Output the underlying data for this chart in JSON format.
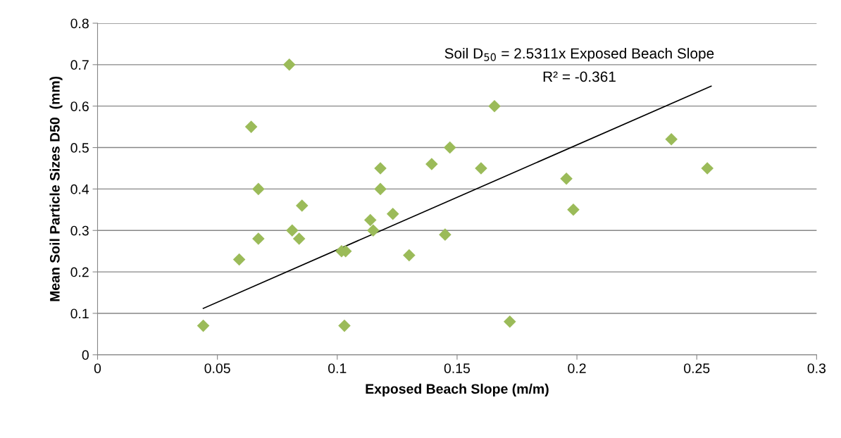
{
  "chart_data": {
    "type": "scatter",
    "xlabel": "Exposed Beach Slope (m/m)",
    "ylabel": "Mean Soil Particle Sizes D50  (mm)",
    "annotations": [
      "Soil D$_{50}$ = 2.5311x Exposed Beach Slope",
      "R² = -0.361"
    ],
    "xlim": [
      0,
      0.3
    ],
    "xticks": [
      0,
      0.05,
      0.1,
      0.15,
      0.2,
      0.25,
      0.3
    ],
    "ylim": [
      0,
      0.8
    ],
    "yticks": [
      0,
      0.1,
      0.2,
      0.3,
      0.4,
      0.5,
      0.6,
      0.7,
      0.8
    ],
    "grid": "y",
    "legend": false,
    "series": [
      {
        "color": "#9bbb59",
        "marker": "diamond",
        "x": [
          0.0441,
          0.0591,
          0.0641,
          0.0671,
          0.0671,
          0.08,
          0.0812,
          0.0841,
          0.0853,
          0.1018,
          0.1035,
          0.103,
          0.1138,
          0.115,
          0.118,
          0.118,
          0.1232,
          0.13,
          0.1394,
          0.145,
          0.147,
          0.16,
          0.1656,
          0.172,
          0.1956,
          0.1985,
          0.2394,
          0.2544
        ],
        "values": [
          0.07,
          0.23,
          0.55,
          0.4,
          0.28,
          0.7,
          0.3,
          0.28,
          0.36,
          0.25,
          0.25,
          0.07,
          0.325,
          0.3,
          0.45,
          0.4,
          0.34,
          0.24,
          0.46,
          0.29,
          0.5,
          0.45,
          0.6,
          0.08,
          0.425,
          0.35,
          0.52,
          0.45
        ]
      },
      {
        "type": "line",
        "color": "#000000",
        "marker": "none",
        "line_style": "solid",
        "x": [
          0.0441,
          0.256
        ],
        "values": [
          0.112,
          0.648
        ]
      }
    ]
  }
}
